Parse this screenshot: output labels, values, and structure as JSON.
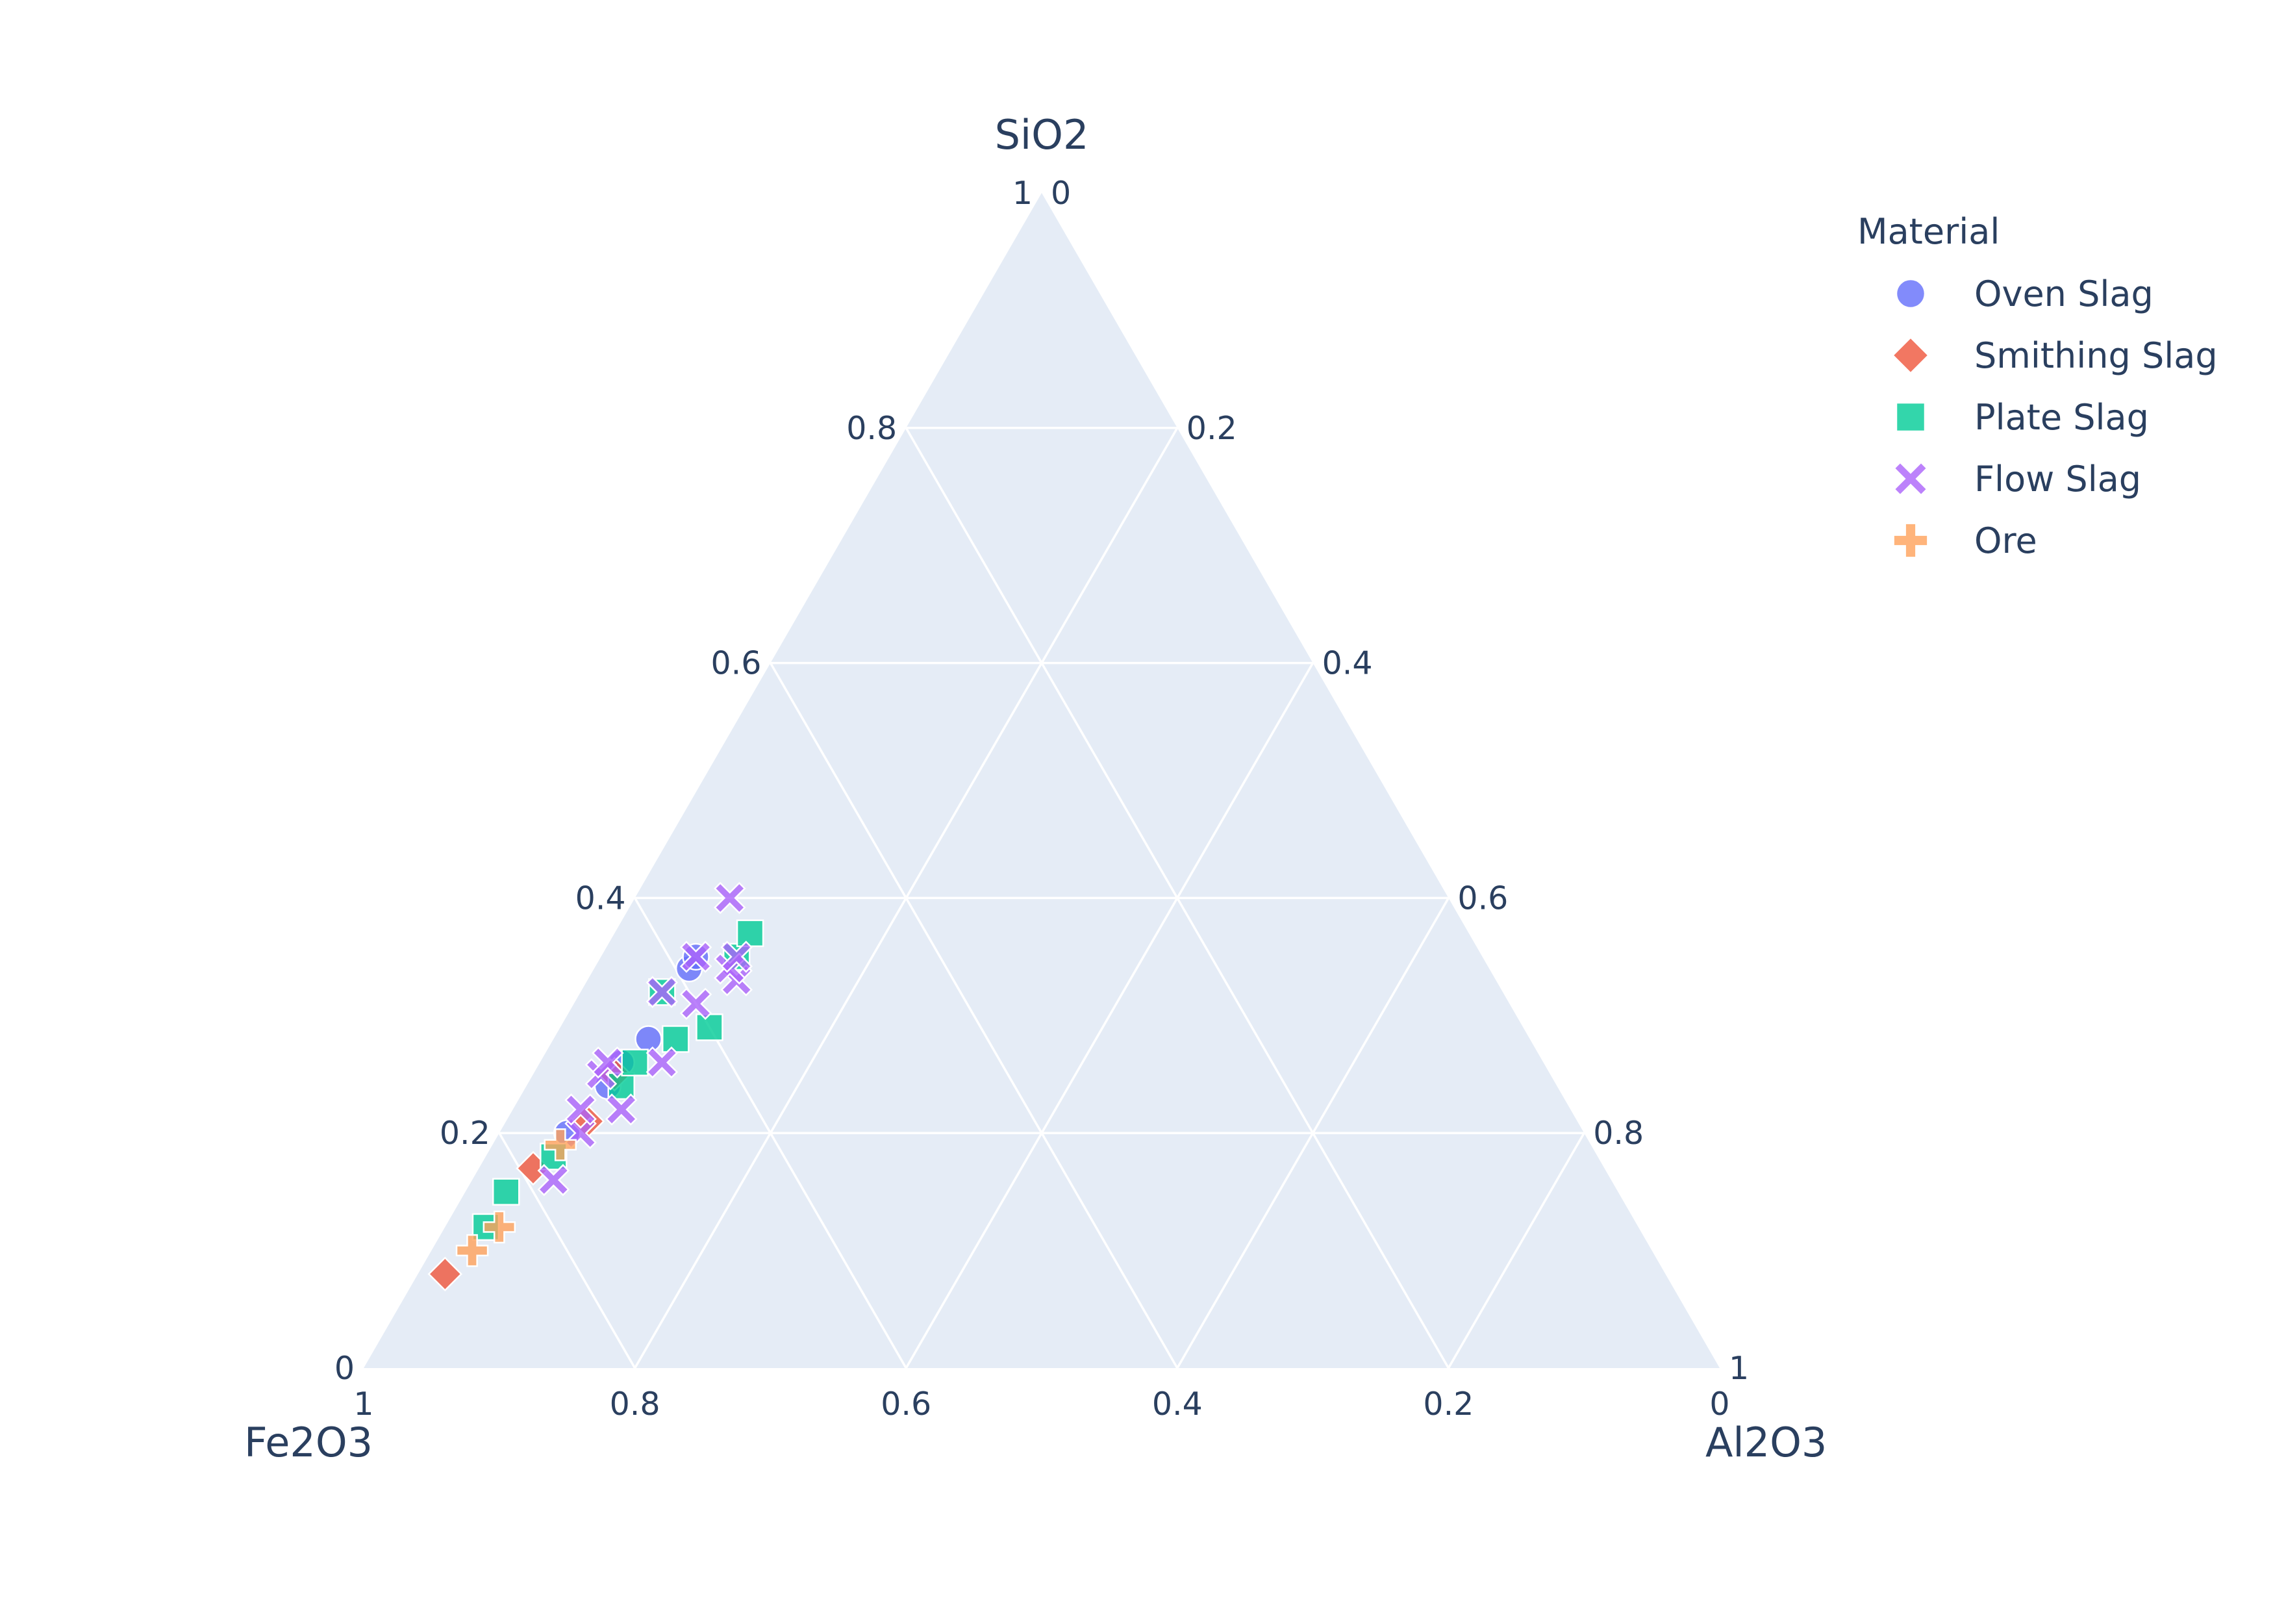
{
  "chart_data": {
    "type": "scatter",
    "subtype": "ternary",
    "axes": {
      "a": {
        "title": "SiO2",
        "ticks": [
          "0",
          "0.2",
          "0.4",
          "0.6",
          "0.8",
          "1"
        ]
      },
      "b": {
        "title": "Fe2O3",
        "ticks": [
          "0",
          "0.2",
          "0.4",
          "0.6",
          "0.8",
          "1"
        ]
      },
      "c": {
        "title": "Al2O3",
        "ticks": [
          "0",
          "0.2",
          "0.4",
          "0.6",
          "0.8",
          "1"
        ]
      }
    },
    "grid": true,
    "legend": {
      "title": "Material",
      "placement": "top-right"
    },
    "series": [
      {
        "name": "Oven Slag",
        "color": "#636efa",
        "symbol": "circle",
        "points": [
          {
            "a": 0.2,
            "b": 0.75,
            "c": 0.05
          },
          {
            "a": 0.24,
            "b": 0.7,
            "c": 0.06
          },
          {
            "a": 0.26,
            "b": 0.68,
            "c": 0.06
          },
          {
            "a": 0.28,
            "b": 0.65,
            "c": 0.07
          },
          {
            "a": 0.34,
            "b": 0.59,
            "c": 0.07
          },
          {
            "a": 0.35,
            "b": 0.58,
            "c": 0.07
          }
        ]
      },
      {
        "name": "Smithing Slag",
        "color": "#ef553b",
        "symbol": "diamond",
        "points": [
          {
            "a": 0.08,
            "b": 0.9,
            "c": 0.02
          },
          {
            "a": 0.17,
            "b": 0.79,
            "c": 0.04
          },
          {
            "a": 0.21,
            "b": 0.73,
            "c": 0.06
          },
          {
            "a": 0.25,
            "b": 0.69,
            "c": 0.06
          }
        ]
      },
      {
        "name": "Plate Slag",
        "color": "#00cc96",
        "symbol": "square",
        "points": [
          {
            "a": 0.12,
            "b": 0.85,
            "c": 0.03
          },
          {
            "a": 0.15,
            "b": 0.82,
            "c": 0.03
          },
          {
            "a": 0.18,
            "b": 0.77,
            "c": 0.05
          },
          {
            "a": 0.24,
            "b": 0.69,
            "c": 0.07
          },
          {
            "a": 0.26,
            "b": 0.67,
            "c": 0.07
          },
          {
            "a": 0.28,
            "b": 0.63,
            "c": 0.09
          },
          {
            "a": 0.29,
            "b": 0.6,
            "c": 0.11
          },
          {
            "a": 0.32,
            "b": 0.62,
            "c": 0.06
          },
          {
            "a": 0.35,
            "b": 0.55,
            "c": 0.1
          },
          {
            "a": 0.37,
            "b": 0.53,
            "c": 0.1
          }
        ]
      },
      {
        "name": "Flow Slag",
        "color": "#ab63fa",
        "symbol": "x",
        "points": [
          {
            "a": 0.16,
            "b": 0.78,
            "c": 0.06
          },
          {
            "a": 0.2,
            "b": 0.74,
            "c": 0.06
          },
          {
            "a": 0.22,
            "b": 0.7,
            "c": 0.08
          },
          {
            "a": 0.22,
            "b": 0.73,
            "c": 0.05
          },
          {
            "a": 0.25,
            "b": 0.7,
            "c": 0.05
          },
          {
            "a": 0.26,
            "b": 0.69,
            "c": 0.05
          },
          {
            "a": 0.26,
            "b": 0.65,
            "c": 0.09
          },
          {
            "a": 0.31,
            "b": 0.6,
            "c": 0.09
          },
          {
            "a": 0.32,
            "b": 0.62,
            "c": 0.06
          },
          {
            "a": 0.33,
            "b": 0.56,
            "c": 0.11
          },
          {
            "a": 0.34,
            "b": 0.56,
            "c": 0.1
          },
          {
            "a": 0.35,
            "b": 0.58,
            "c": 0.07
          },
          {
            "a": 0.35,
            "b": 0.55,
            "c": 0.1
          },
          {
            "a": 0.4,
            "b": 0.53,
            "c": 0.07
          }
        ]
      },
      {
        "name": "Ore",
        "color": "#ffa15a",
        "symbol": "cross",
        "points": [
          {
            "a": 0.1,
            "b": 0.87,
            "c": 0.03
          },
          {
            "a": 0.12,
            "b": 0.84,
            "c": 0.04
          },
          {
            "a": 0.19,
            "b": 0.76,
            "c": 0.05
          }
        ]
      }
    ]
  }
}
